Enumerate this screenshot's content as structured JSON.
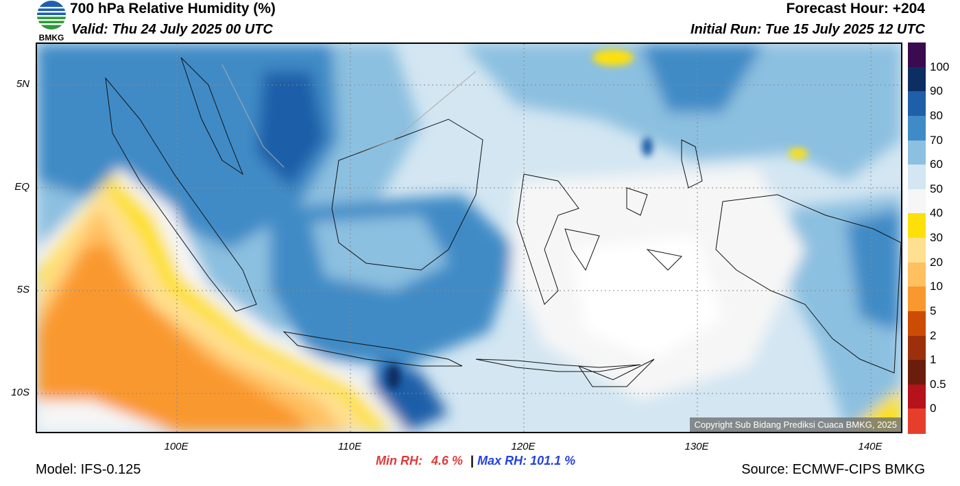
{
  "header": {
    "title": "700 hPa Relative Humidity (%)",
    "valid": "Valid: Thu 24 July 2025 00 UTC",
    "forecast_hour": "Forecast Hour: +204",
    "initial_run": "Initial Run: Tue 15 July 2025 12 UTC",
    "logo_text": "BMKG"
  },
  "axes": {
    "lat_labels": [
      "5N",
      "EQ",
      "5S",
      "10S"
    ],
    "lon_labels": [
      "100E",
      "110E",
      "120E",
      "130E",
      "140E"
    ]
  },
  "colorbar": {
    "levels": [
      "100",
      "90",
      "80",
      "70",
      "60",
      "50",
      "40",
      "30",
      "20",
      "10",
      "5",
      "2",
      "1",
      "0.5",
      "0"
    ],
    "colors": [
      "#3b0a4f",
      "#0d2e63",
      "#1f5ea8",
      "#3f8bc6",
      "#8cc0e0",
      "#d3e6f2",
      "#f6f6f6",
      "#fde009",
      "#ffe091",
      "#ffc060",
      "#f9982e",
      "#cc4c05",
      "#9c300a",
      "#6a1d0d",
      "#b5121b",
      "#e73e2b"
    ]
  },
  "stats": {
    "min_label": "Min RH:",
    "min_value": "4.6 %",
    "sep": "|",
    "max_label": "Max RH:",
    "max_value": "101.1 %"
  },
  "footer": {
    "model": "Model: IFS-0.125",
    "source": "Source: ECMWF-CIPS BMKG",
    "copyright": "Copyright Sub Bidang Prediksi Cuaca BMKG, 2025"
  }
}
